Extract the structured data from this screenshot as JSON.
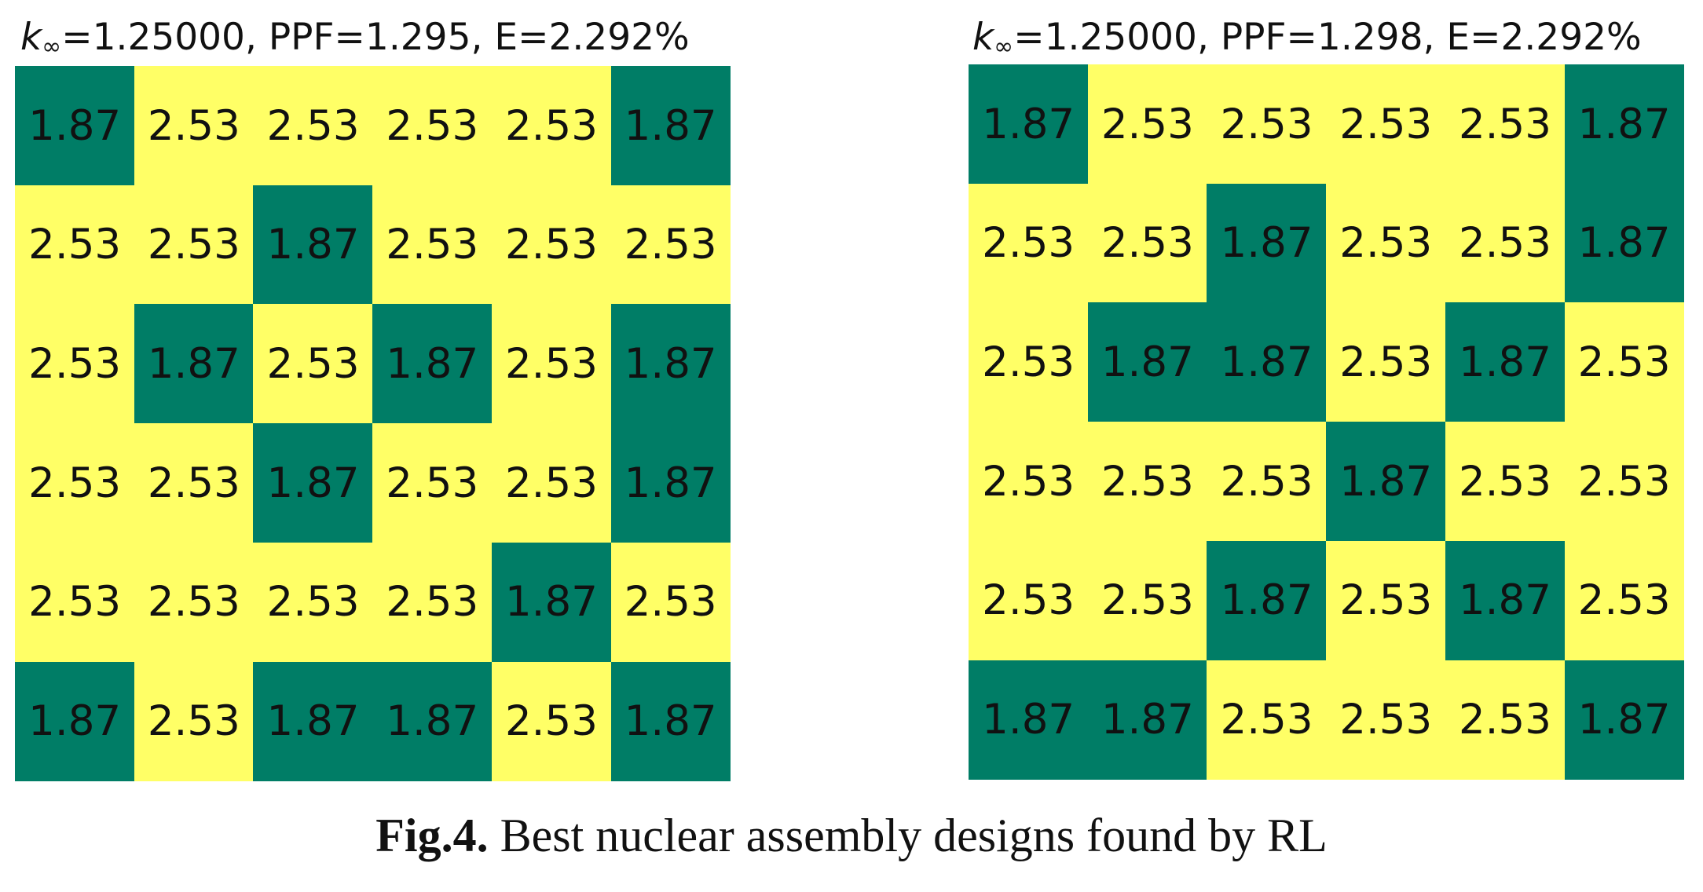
{
  "chart_data": [
    {
      "type": "heatmap",
      "title_parts": {
        "k_symbol": "k",
        "k_subscript": "∞",
        "rest": "=1.25000, PPF=1.295, E=2.292%"
      },
      "rows": 6,
      "cols": 6,
      "values": [
        [
          1.87,
          2.53,
          2.53,
          2.53,
          2.53,
          1.87
        ],
        [
          2.53,
          2.53,
          1.87,
          2.53,
          2.53,
          2.53
        ],
        [
          2.53,
          1.87,
          2.53,
          1.87,
          2.53,
          1.87
        ],
        [
          2.53,
          2.53,
          1.87,
          2.53,
          2.53,
          1.87
        ],
        [
          2.53,
          2.53,
          2.53,
          2.53,
          1.87,
          2.53
        ],
        [
          1.87,
          2.53,
          1.87,
          1.87,
          2.53,
          1.87
        ]
      ]
    },
    {
      "type": "heatmap",
      "title_parts": {
        "k_symbol": "k",
        "k_subscript": "∞",
        "rest": "=1.25000, PPF=1.298, E=2.292%"
      },
      "rows": 6,
      "cols": 6,
      "values": [
        [
          1.87,
          2.53,
          2.53,
          2.53,
          2.53,
          1.87
        ],
        [
          2.53,
          2.53,
          1.87,
          2.53,
          2.53,
          1.87
        ],
        [
          2.53,
          1.87,
          1.87,
          2.53,
          1.87,
          2.53
        ],
        [
          2.53,
          2.53,
          2.53,
          1.87,
          2.53,
          2.53
        ],
        [
          2.53,
          2.53,
          1.87,
          2.53,
          1.87,
          2.53
        ],
        [
          1.87,
          1.87,
          2.53,
          2.53,
          2.53,
          1.87
        ]
      ]
    }
  ],
  "colors": {
    "low_value": "#007d66",
    "high_value": "#ffff66"
  },
  "caption": {
    "label": "Fig.4.",
    "text": " Best nuclear assembly designs found by RL"
  }
}
